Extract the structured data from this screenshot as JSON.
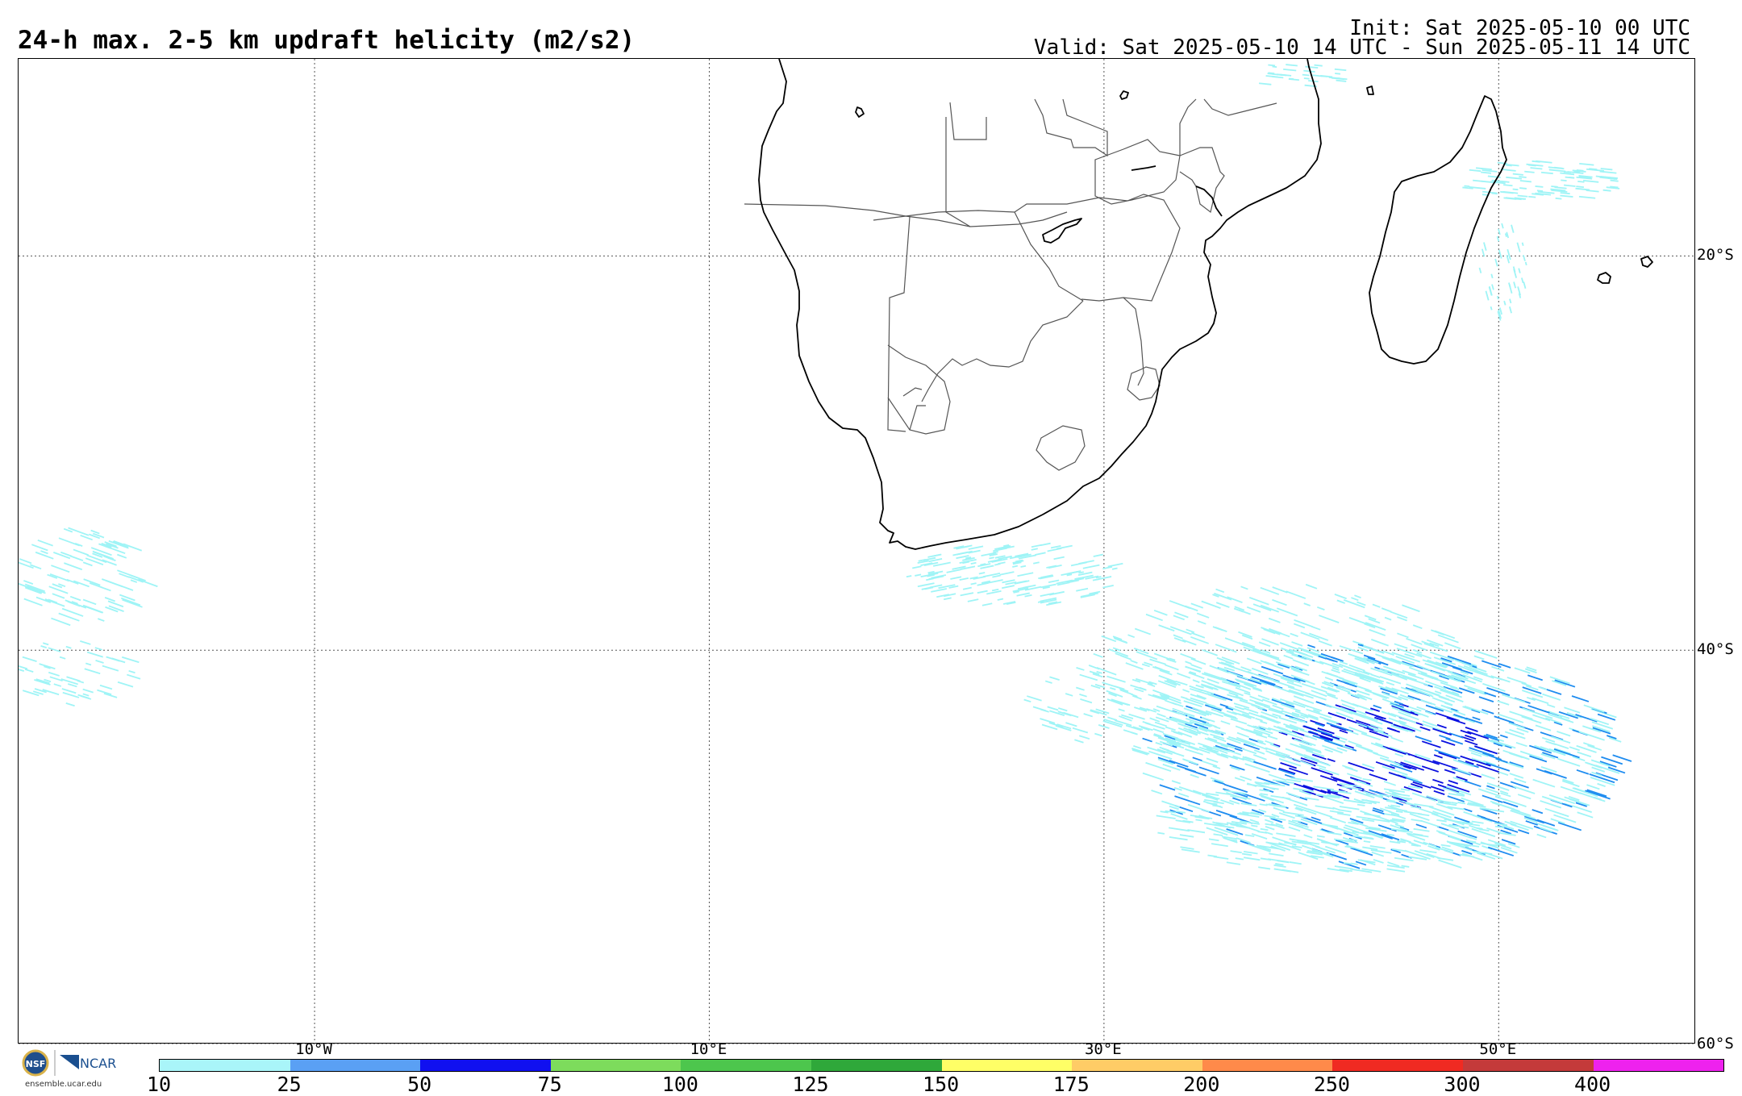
{
  "header": {
    "title": "24-h max. 2-5 km updraft helicity (m2/s2)",
    "init": "Init: Sat 2025-05-10 00 UTC",
    "valid": "Valid: Sat 2025-05-10 14 UTC - Sun 2025-05-11 14 UTC"
  },
  "map": {
    "projection": "cylindrical",
    "lon_range": [
      -25,
      60
    ],
    "lat_range": [
      -60,
      -10
    ],
    "lat_gridlines": [
      {
        "lat": -20,
        "label": "20°S"
      },
      {
        "lat": -40,
        "label": "40°S"
      },
      {
        "lat": -60,
        "label": "60°S"
      }
    ],
    "lon_gridlines": [
      {
        "lon": -10,
        "label": "10°W"
      },
      {
        "lon": 10,
        "label": "10°E"
      },
      {
        "lon": 30,
        "label": "30°E"
      },
      {
        "lon": 50,
        "label": "50°E"
      }
    ],
    "grid_style": "dotted",
    "coastline_color": "#000000",
    "border_color": "#555555",
    "field_colors": [
      "#9ff4f6",
      "#0a10e0",
      "#1e8cf0"
    ]
  },
  "colorbar": {
    "labels": [
      "10",
      "25",
      "50",
      "75",
      "100",
      "125",
      "150",
      "175",
      "200",
      "250",
      "300",
      "400"
    ],
    "colors": [
      "#a9f5f9",
      "#5aa0f4",
      "#1010f0",
      "#7ddc5c",
      "#4dc64d",
      "#2fa83a",
      "#ffff66",
      "#ffcc66",
      "#ff8a4a",
      "#f02a22",
      "#c43a3a",
      "#ee22ee"
    ]
  },
  "logo": {
    "nsf_label": "NSF",
    "ncar_label": "NCAR",
    "url_text": "ensemble.ucar.edu"
  }
}
